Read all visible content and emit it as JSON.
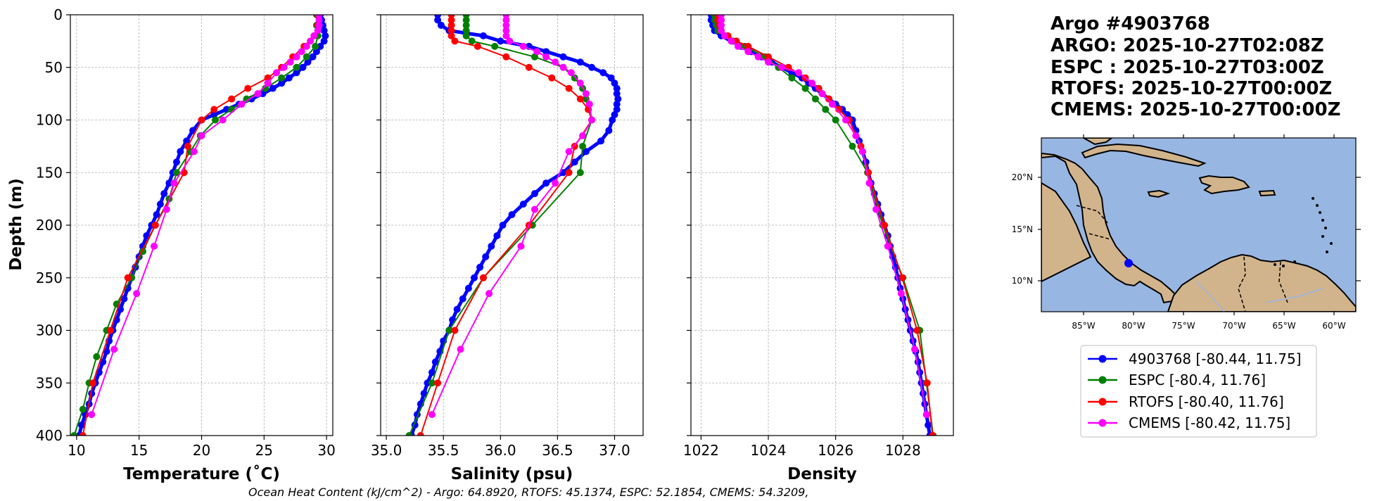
{
  "title_lines": [
    "Argo #4903768",
    "ARGO: 2025-10-27T02:08Z",
    "ESPC : 2025-10-27T03:00Z",
    "RTOFS: 2025-10-27T00:00Z",
    "CMEMS: 2025-10-27T00:00Z"
  ],
  "footer": "Ocean Heat Content (kJ/cm^2) - Argo: 64.8920,  RTOFS: 45.1374,  ESPC: 52.1854,  CMEMS: 54.3209,",
  "map": {
    "lon_labels": [
      "85°W",
      "80°W",
      "75°W",
      "70°W",
      "65°W",
      "60°W"
    ],
    "lat_labels": [
      "20°N",
      "15°N",
      "10°N"
    ],
    "float_position": {
      "lon": -80.44,
      "lat": 11.75
    },
    "colors": {
      "ocean": "#98b6e2",
      "land": "#d2b48c",
      "marker": "#0000ff"
    }
  },
  "legend": [
    {
      "label": "4903768 [-80.44, 11.75]",
      "color": "#0000ff"
    },
    {
      "label": "ESPC [-80.4, 11.76]",
      "color": "#008000"
    },
    {
      "label": "RTOFS [-80.40, 11.76]",
      "color": "#ff0000"
    },
    {
      "label": "CMEMS [-80.42, 11.75]",
      "color": "#ff00ff"
    }
  ],
  "chart_data": [
    {
      "type": "line",
      "xlabel": "Temperature (˚C)",
      "ylabel": "Depth (m)",
      "xlim": [
        9.5,
        30.5
      ],
      "ylim": [
        400,
        0
      ],
      "xticks": [
        10,
        15,
        20,
        25,
        30
      ],
      "yticks": [
        0,
        50,
        100,
        150,
        200,
        250,
        300,
        350,
        400
      ],
      "grid": true,
      "series": [
        {
          "name": "Argo",
          "color": "#0000ff",
          "lw": 5,
          "ms": 7,
          "depth": [
            0,
            5,
            10,
            15,
            20,
            25,
            30,
            35,
            40,
            45,
            50,
            55,
            60,
            65,
            70,
            75,
            80,
            85,
            90,
            95,
            100,
            110,
            120,
            130,
            140,
            150,
            160,
            170,
            180,
            190,
            200,
            210,
            220,
            230,
            240,
            250,
            260,
            270,
            280,
            290,
            300,
            310,
            320,
            330,
            340,
            350,
            360,
            370,
            380,
            390,
            400
          ],
          "values": [
            29.5,
            29.6,
            29.7,
            29.8,
            29.9,
            29.8,
            29.5,
            29.2,
            28.9,
            28.5,
            28.1,
            27.6,
            27.0,
            26.4,
            25.7,
            24.9,
            24.0,
            23.0,
            22.0,
            21.0,
            20.0,
            19.3,
            18.8,
            18.3,
            18.0,
            17.7,
            17.4,
            17.0,
            16.7,
            16.4,
            16.0,
            15.6,
            15.3,
            15.0,
            14.7,
            14.4,
            14.1,
            13.8,
            13.5,
            13.2,
            12.9,
            12.6,
            12.4,
            12.1,
            11.8,
            11.5,
            11.2,
            11.0,
            10.7,
            10.4,
            10.2
          ]
        },
        {
          "name": "ESPC",
          "color": "#008000",
          "lw": 2,
          "ms": 10,
          "depth": [
            0,
            10,
            20,
            30,
            40,
            50,
            60,
            70,
            80,
            90,
            100,
            115,
            130,
            150,
            175,
            200,
            225,
            250,
            275,
            300,
            325,
            350,
            375,
            400
          ],
          "values": [
            29.2,
            29.2,
            29.3,
            29.1,
            28.4,
            27.6,
            26.4,
            25.1,
            23.6,
            22.4,
            21.1,
            19.9,
            19.1,
            18.0,
            17.4,
            16.3,
            15.3,
            14.4,
            13.2,
            12.4,
            11.6,
            11.0,
            10.5,
            9.8
          ]
        },
        {
          "name": "RTOFS",
          "color": "#ff0000",
          "lw": 2,
          "ms": 10,
          "depth": [
            0,
            10,
            20,
            30,
            40,
            50,
            60,
            70,
            80,
            90,
            100,
            125,
            150,
            200,
            250,
            300,
            350,
            400
          ],
          "values": [
            29.3,
            29.3,
            29.0,
            28.2,
            27.3,
            26.4,
            25.3,
            23.7,
            22.4,
            21.0,
            20.0,
            18.9,
            18.6,
            16.3,
            14.1,
            12.7,
            11.3,
            10.5
          ]
        },
        {
          "name": "CMEMS",
          "color": "#ff00ff",
          "lw": 2,
          "ms": 10,
          "depth": [
            0,
            5,
            10,
            15,
            20,
            25,
            30,
            35,
            40,
            45,
            50,
            55,
            65,
            75,
            85,
            100,
            115,
            130,
            160,
            185,
            220,
            265,
            318,
            380
          ],
          "values": [
            29.4,
            29.4,
            29.4,
            29.3,
            29.0,
            28.7,
            28.4,
            28.0,
            27.6,
            27.1,
            26.6,
            26.0,
            25.3,
            24.5,
            23.2,
            21.7,
            20.0,
            19.4,
            17.8,
            17.2,
            16.2,
            14.8,
            13.0,
            11.2
          ]
        }
      ]
    },
    {
      "type": "line",
      "xlabel": "Salinity (psu)",
      "ylabel": "",
      "xlim": [
        34.95,
        37.25
      ],
      "ylim": [
        400,
        0
      ],
      "xticks": [
        35.0,
        35.5,
        36.0,
        36.5,
        37.0
      ],
      "yticks": [
        0,
        50,
        100,
        150,
        200,
        250,
        300,
        350,
        400
      ],
      "grid": true,
      "series": [
        {
          "name": "Argo",
          "color": "#0000ff",
          "lw": 5,
          "ms": 7,
          "depth": [
            0,
            5,
            10,
            15,
            20,
            25,
            30,
            35,
            40,
            45,
            50,
            55,
            60,
            65,
            70,
            75,
            80,
            85,
            90,
            95,
            100,
            110,
            120,
            130,
            140,
            150,
            160,
            170,
            180,
            190,
            200,
            210,
            220,
            230,
            240,
            250,
            260,
            270,
            280,
            290,
            300,
            310,
            320,
            330,
            340,
            350,
            360,
            370,
            380,
            390,
            400
          ],
          "values": [
            35.45,
            35.45,
            35.48,
            35.55,
            35.85,
            36.0,
            36.25,
            36.4,
            36.55,
            36.7,
            36.8,
            36.9,
            36.97,
            37.0,
            37.02,
            37.02,
            37.03,
            37.02,
            37.02,
            37.0,
            36.98,
            36.95,
            36.88,
            36.75,
            36.65,
            36.55,
            36.4,
            36.3,
            36.2,
            36.1,
            36.02,
            35.97,
            35.92,
            35.87,
            35.82,
            35.77,
            35.72,
            35.67,
            35.62,
            35.58,
            35.55,
            35.5,
            35.47,
            35.43,
            35.4,
            35.36,
            35.33,
            35.3,
            35.27,
            35.25,
            35.22
          ]
        },
        {
          "name": "ESPC",
          "color": "#008000",
          "lw": 2,
          "ms": 10,
          "depth": [
            0,
            5,
            10,
            15,
            20,
            25,
            30,
            40,
            50,
            60,
            70,
            80,
            90,
            100,
            125,
            150,
            200,
            250,
            300,
            350,
            400
          ],
          "values": [
            35.7,
            35.7,
            35.7,
            35.7,
            35.7,
            35.75,
            35.95,
            36.3,
            36.55,
            36.65,
            36.72,
            36.75,
            36.77,
            36.8,
            36.72,
            36.7,
            36.28,
            35.85,
            35.55,
            35.4,
            35.2
          ]
        },
        {
          "name": "RTOFS",
          "color": "#ff0000",
          "lw": 2,
          "ms": 10,
          "depth": [
            0,
            5,
            10,
            15,
            20,
            25,
            30,
            40,
            50,
            60,
            70,
            80,
            90,
            100,
            125,
            150,
            200,
            250,
            300,
            350,
            400
          ],
          "values": [
            35.57,
            35.57,
            35.57,
            35.57,
            35.57,
            35.6,
            35.8,
            36.05,
            36.25,
            36.45,
            36.6,
            36.7,
            36.77,
            36.8,
            36.65,
            36.6,
            36.25,
            35.85,
            35.6,
            35.45,
            35.3
          ]
        },
        {
          "name": "CMEMS",
          "color": "#ff00ff",
          "lw": 2,
          "ms": 10,
          "depth": [
            0,
            5,
            10,
            15,
            20,
            25,
            30,
            35,
            40,
            45,
            50,
            55,
            65,
            75,
            85,
            100,
            115,
            130,
            160,
            185,
            220,
            265,
            318,
            380
          ],
          "values": [
            36.05,
            36.05,
            36.05,
            36.05,
            36.05,
            36.08,
            36.2,
            36.32,
            36.4,
            36.48,
            36.55,
            36.62,
            36.7,
            36.75,
            36.78,
            36.8,
            36.72,
            36.6,
            36.48,
            36.3,
            36.18,
            35.9,
            35.65,
            35.4
          ]
        }
      ]
    },
    {
      "type": "line",
      "xlabel": "Density",
      "ylabel": "",
      "xlim": [
        1021.7,
        1029.5
      ],
      "ylim": [
        400,
        0
      ],
      "xticks": [
        1022,
        1024,
        1026,
        1028
      ],
      "yticks": [
        0,
        50,
        100,
        150,
        200,
        250,
        300,
        350,
        400
      ],
      "grid": true,
      "series": [
        {
          "name": "Argo",
          "color": "#0000ff",
          "lw": 5,
          "ms": 7,
          "depth": [
            0,
            5,
            10,
            15,
            20,
            25,
            30,
            35,
            40,
            45,
            50,
            55,
            60,
            65,
            70,
            75,
            80,
            85,
            90,
            95,
            100,
            110,
            120,
            130,
            140,
            150,
            160,
            170,
            180,
            190,
            200,
            210,
            220,
            230,
            240,
            250,
            260,
            270,
            280,
            290,
            300,
            310,
            320,
            330,
            340,
            350,
            360,
            370,
            380,
            390,
            400
          ],
          "values": [
            1022.3,
            1022.3,
            1022.35,
            1022.4,
            1022.6,
            1022.9,
            1023.2,
            1023.5,
            1023.8,
            1024.1,
            1024.4,
            1024.7,
            1025.0,
            1025.2,
            1025.4,
            1025.6,
            1025.8,
            1026.0,
            1026.2,
            1026.35,
            1026.5,
            1026.6,
            1026.7,
            1026.8,
            1026.9,
            1026.97,
            1027.05,
            1027.15,
            1027.25,
            1027.35,
            1027.45,
            1027.55,
            1027.62,
            1027.7,
            1027.78,
            1027.85,
            1027.92,
            1028.0,
            1028.07,
            1028.15,
            1028.22,
            1028.3,
            1028.38,
            1028.45,
            1028.5,
            1028.55,
            1028.6,
            1028.65,
            1028.7,
            1028.75,
            1028.8
          ]
        },
        {
          "name": "ESPC",
          "color": "#008000",
          "lw": 2,
          "ms": 10,
          "depth": [
            0,
            5,
            10,
            15,
            20,
            25,
            30,
            40,
            50,
            60,
            70,
            80,
            90,
            100,
            125,
            150,
            200,
            250,
            300,
            350,
            400
          ],
          "values": [
            1022.4,
            1022.4,
            1022.45,
            1022.5,
            1022.7,
            1022.95,
            1023.3,
            1023.9,
            1024.3,
            1024.7,
            1025.1,
            1025.4,
            1025.7,
            1026.0,
            1026.5,
            1026.95,
            1027.4,
            1028.0,
            1028.5,
            1028.7,
            1028.9
          ]
        },
        {
          "name": "RTOFS",
          "color": "#ff0000",
          "lw": 2,
          "ms": 10,
          "depth": [
            0,
            5,
            10,
            15,
            20,
            25,
            30,
            40,
            50,
            60,
            70,
            80,
            90,
            100,
            125,
            150,
            200,
            250,
            300,
            350,
            400
          ],
          "values": [
            1022.5,
            1022.5,
            1022.55,
            1022.6,
            1022.8,
            1023.05,
            1023.4,
            1024.0,
            1024.6,
            1025.1,
            1025.5,
            1025.8,
            1026.1,
            1026.4,
            1026.75,
            1026.97,
            1027.45,
            1027.98,
            1028.42,
            1028.72,
            1028.88
          ]
        },
        {
          "name": "CMEMS",
          "color": "#ff00ff",
          "lw": 2,
          "ms": 10,
          "depth": [
            0,
            5,
            10,
            15,
            20,
            25,
            30,
            35,
            40,
            45,
            50,
            55,
            65,
            75,
            85,
            100,
            115,
            130,
            160,
            185,
            220,
            265,
            318,
            380
          ],
          "values": [
            1022.6,
            1022.6,
            1022.6,
            1022.6,
            1022.7,
            1022.9,
            1023.1,
            1023.4,
            1023.7,
            1024.0,
            1024.4,
            1024.9,
            1025.3,
            1025.6,
            1025.9,
            1026.3,
            1026.6,
            1026.8,
            1027.0,
            1027.2,
            1027.55,
            1027.95,
            1028.35,
            1028.7
          ]
        }
      ]
    }
  ]
}
